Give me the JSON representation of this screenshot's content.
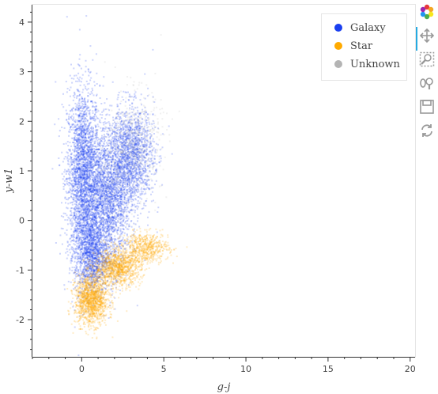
{
  "chart_data": {
    "type": "scatter",
    "title": "",
    "xlabel": "g-j",
    "ylabel": "y-w1",
    "xlim": [
      -3,
      20.3
    ],
    "ylim": [
      -2.75,
      4.35
    ],
    "x_ticks": [
      0,
      5,
      10,
      15,
      20
    ],
    "y_ticks": [
      -2,
      -1,
      0,
      1,
      2,
      3,
      4
    ],
    "grid": false,
    "legend_position": "top-right",
    "series": [
      {
        "name": "Galaxy",
        "color": "#1a3ff0",
        "clusters": [
          {
            "x_center": 0.1,
            "y_center": 0.9,
            "x_spread": 0.5,
            "y_spread": 0.9,
            "count": 2600
          },
          {
            "x_center": 1.6,
            "y_center": 0.4,
            "x_spread": 0.7,
            "y_spread": 0.7,
            "count": 2200
          },
          {
            "x_center": 3.0,
            "y_center": 1.3,
            "x_spread": 0.7,
            "y_spread": 0.5,
            "count": 1600
          },
          {
            "x_center": 0.6,
            "y_center": -0.7,
            "x_spread": 0.5,
            "y_spread": 0.4,
            "count": 1200
          }
        ]
      },
      {
        "name": "Star",
        "color": "#ffaa00",
        "clusters": [
          {
            "x_center": 0.6,
            "y_center": -1.6,
            "x_spread": 0.5,
            "y_spread": 0.25,
            "count": 1400
          },
          {
            "x_center": 2.2,
            "y_center": -0.95,
            "x_spread": 0.7,
            "y_spread": 0.18,
            "count": 1100
          },
          {
            "x_center": 3.9,
            "y_center": -0.55,
            "x_spread": 0.7,
            "y_spread": 0.15,
            "count": 600
          }
        ]
      },
      {
        "name": "Unknown",
        "color": "#b4b4b4",
        "clusters": [
          {
            "x_center": 3.3,
            "y_center": 1.6,
            "x_spread": 0.8,
            "y_spread": 0.5,
            "count": 500
          },
          {
            "x_center": 1.8,
            "y_center": 0.7,
            "x_spread": 0.8,
            "y_spread": 0.6,
            "count": 250
          }
        ]
      }
    ]
  },
  "toolbar": {
    "tools": [
      {
        "name": "bokeh-logo-icon"
      },
      {
        "name": "pan-tool-icon",
        "active": true
      },
      {
        "name": "box-zoom-tool-icon"
      },
      {
        "name": "wheel-zoom-tool-icon"
      },
      {
        "name": "save-tool-icon"
      },
      {
        "name": "reset-tool-icon"
      }
    ]
  }
}
